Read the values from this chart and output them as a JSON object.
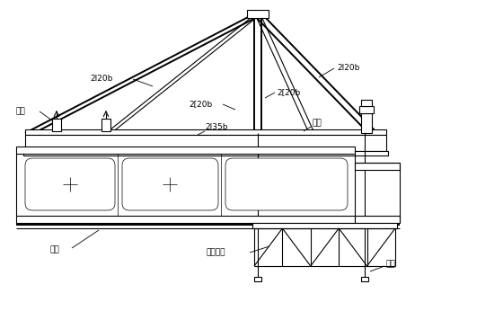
{
  "bg_color": "#ffffff",
  "line_color": "#000000",
  "lw": 0.8,
  "lw_thick": 1.4,
  "lw_thin": 0.5,
  "font_size": 6.5,
  "labels": {
    "2I20b_left": "2I20b",
    "2I20b_right": "2I20b",
    "2_20b_left": "2[20b",
    "2_20b_right": "2[20b",
    "2I35b": "2I35b",
    "zou_ban": "走板",
    "diao_gan": "吊杆",
    "di_mo": "底模桁片",
    "jia_ti": "架体",
    "mao_gan": "锚杆"
  }
}
